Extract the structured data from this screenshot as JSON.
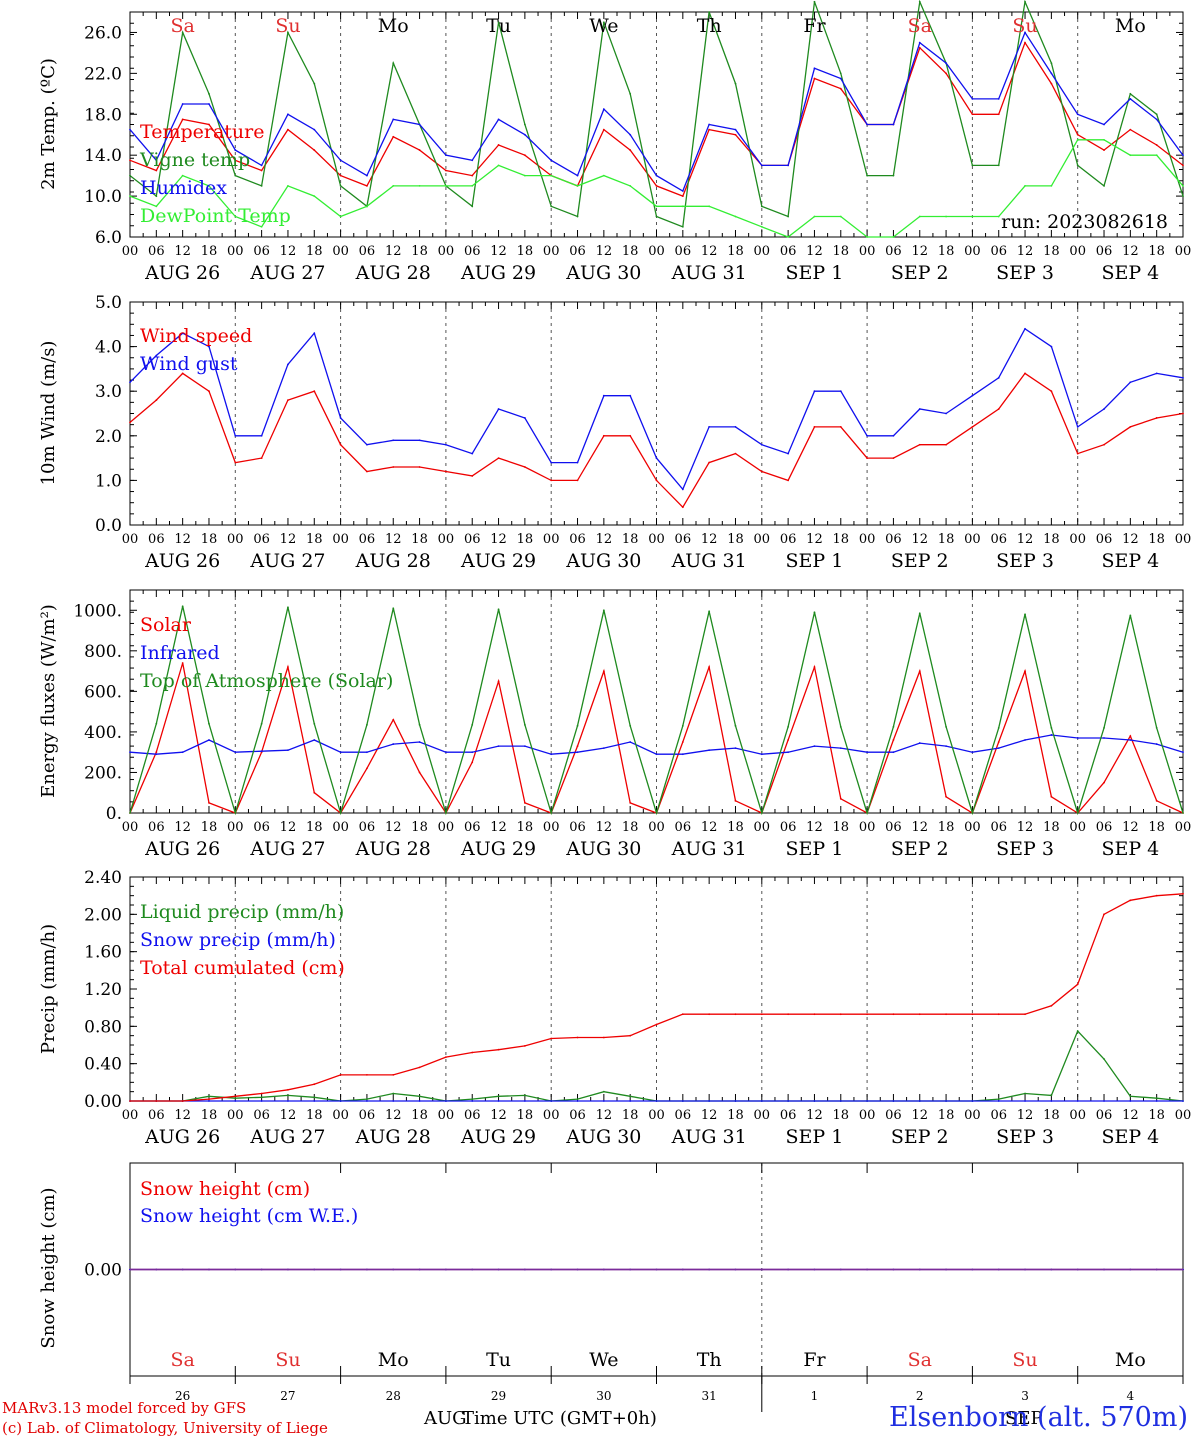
{
  "run_label": "run: 2023082618",
  "footer": {
    "credit_line1": "MARv3.13 model forced by GFS",
    "credit_line2": "(c) Lab. of Climatology, University of Liege",
    "xlabel": "Time UTC (GMT+0h)",
    "station": "Elsenborn (alt. 570m)",
    "month_start": "AUG",
    "month_end": "SEP"
  },
  "colors": {
    "red": "#ee0000",
    "green": "#1f8a1f",
    "blue": "#1010ee",
    "lightgreen": "#33ee33",
    "purple": "#7a2b9a",
    "weekend": "#e03030",
    "weekday": "#000000"
  },
  "days": {
    "weekdays": [
      "Sa",
      "Su",
      "Mo",
      "Tu",
      "We",
      "Th",
      "Fr",
      "Sa",
      "Su",
      "Mo"
    ],
    "weekend": [
      true,
      true,
      false,
      false,
      false,
      false,
      false,
      true,
      true,
      false
    ],
    "dates": [
      "AUG 26",
      "AUG 27",
      "AUG 28",
      "AUG 29",
      "AUG 30",
      "AUG 31",
      "SEP  1",
      "SEP  2",
      "SEP  3",
      "SEP  4"
    ],
    "day_numbers": [
      "26",
      "27",
      "28",
      "29",
      "30",
      "31",
      "1",
      "2",
      "3",
      "4"
    ],
    "hour_ticks": [
      "00",
      "06",
      "12",
      "18"
    ]
  },
  "chart_data": [
    {
      "type": "line",
      "ylabel": "2m Temp. (ºC)",
      "ylim": [
        6,
        28
      ],
      "yticks": [
        "6.0",
        "10.0",
        "14.0",
        "18.0",
        "22.0",
        "26.0"
      ],
      "x": "hours since AUG 26 00 UTC, every 6 h",
      "series": [
        {
          "name": "Temperature",
          "color": "red",
          "values": [
            13.5,
            12.5,
            17.5,
            17,
            13.5,
            12.5,
            16.5,
            14.5,
            12,
            11,
            15.8,
            14.5,
            12.5,
            12,
            15,
            14,
            12,
            11,
            16.5,
            14.5,
            11,
            10,
            16.5,
            16,
            13,
            13,
            21.5,
            20.5,
            17,
            17,
            24.5,
            22,
            18,
            18,
            25,
            21,
            16,
            14.5,
            16.5,
            15,
            13
          ]
        },
        {
          "name": "Vigne temp",
          "color": "green",
          "values": [
            12,
            10,
            26,
            20,
            12,
            11,
            26,
            21,
            11,
            9,
            23,
            17,
            11,
            9,
            27,
            17,
            9,
            8,
            27,
            20,
            8,
            7,
            28,
            21,
            9,
            8,
            29,
            22,
            12,
            12,
            29,
            23,
            13,
            13,
            29,
            23,
            13,
            11,
            20,
            18,
            10
          ]
        },
        {
          "name": "Humidex",
          "color": "blue",
          "values": [
            16.5,
            13.5,
            19,
            19,
            14.5,
            13,
            18,
            16.5,
            13.5,
            12,
            17.5,
            17,
            14,
            13.5,
            17.5,
            16,
            13.5,
            12,
            18.5,
            16,
            12,
            10.5,
            17,
            16.5,
            13,
            13,
            22.5,
            21.5,
            17,
            17,
            25,
            23,
            19.5,
            19.5,
            26,
            22,
            18,
            17,
            19.5,
            17.5,
            14
          ]
        },
        {
          "name": "DewPoint Temp",
          "color": "lightgreen",
          "values": [
            10,
            9,
            12,
            11,
            8,
            7,
            11,
            10,
            8,
            9,
            11,
            11,
            11,
            11,
            13,
            12,
            12,
            11,
            12,
            11,
            9,
            9,
            9,
            8,
            7,
            6,
            8,
            8,
            6,
            6,
            8,
            8,
            8,
            8,
            11,
            11,
            15.5,
            15.5,
            14,
            14,
            11
          ]
        }
      ]
    },
    {
      "type": "line",
      "ylabel": "10m Wind (m/s)",
      "ylim": [
        0,
        5
      ],
      "yticks": [
        "0.0",
        "1.0",
        "2.0",
        "3.0",
        "4.0",
        "5.0"
      ],
      "x": "hours since AUG 26 00 UTC, every 6 h",
      "series": [
        {
          "name": "Wind speed",
          "color": "red",
          "values": [
            2.3,
            2.8,
            3.4,
            3.0,
            1.4,
            1.5,
            2.8,
            3.0,
            1.8,
            1.2,
            1.3,
            1.3,
            1.2,
            1.1,
            1.5,
            1.3,
            1.0,
            1.0,
            2.0,
            2.0,
            1.0,
            0.4,
            1.4,
            1.6,
            1.2,
            1.0,
            2.2,
            2.2,
            1.5,
            1.5,
            1.8,
            1.8,
            2.2,
            2.6,
            3.4,
            3.0,
            1.6,
            1.8,
            2.2,
            2.4,
            2.5
          ]
        },
        {
          "name": "Wind gust",
          "color": "blue",
          "values": [
            3.2,
            3.8,
            4.3,
            4.0,
            2.0,
            2.0,
            3.6,
            4.3,
            2.4,
            1.8,
            1.9,
            1.9,
            1.8,
            1.6,
            2.6,
            2.4,
            1.4,
            1.4,
            2.9,
            2.9,
            1.5,
            0.8,
            2.2,
            2.2,
            1.8,
            1.6,
            3.0,
            3.0,
            2.0,
            2.0,
            2.6,
            2.5,
            2.9,
            3.3,
            4.4,
            4.0,
            2.2,
            2.6,
            3.2,
            3.4,
            3.3
          ]
        }
      ]
    },
    {
      "type": "line",
      "ylabel": "Energy fluxes (W/m²)",
      "ylim": [
        0,
        1100
      ],
      "yticks": [
        "0.",
        "200.",
        "400.",
        "600.",
        "800.",
        "1000."
      ],
      "x": "hours since AUG 26 00 UTC, every 6 h",
      "series": [
        {
          "name": "Solar",
          "color": "red",
          "values": [
            0,
            300,
            740,
            50,
            0,
            300,
            720,
            100,
            0,
            220,
            460,
            200,
            0,
            250,
            650,
            50,
            0,
            330,
            700,
            50,
            0,
            350,
            720,
            60,
            0,
            360,
            720,
            70,
            0,
            360,
            700,
            80,
            0,
            350,
            700,
            80,
            0,
            150,
            380,
            60,
            0
          ]
        },
        {
          "name": "Infrared",
          "color": "blue",
          "values": [
            300,
            290,
            300,
            360,
            300,
            305,
            310,
            360,
            300,
            300,
            340,
            350,
            300,
            300,
            330,
            330,
            290,
            300,
            320,
            350,
            290,
            290,
            310,
            320,
            290,
            300,
            330,
            320,
            300,
            300,
            345,
            330,
            300,
            320,
            360,
            385,
            370,
            370,
            360,
            340,
            300
          ]
        },
        {
          "name": "Top of Atmosphere (Solar)",
          "color": "green",
          "values": [
            0,
            440,
            1020,
            440,
            0,
            440,
            1015,
            440,
            0,
            435,
            1010,
            435,
            0,
            435,
            1005,
            435,
            0,
            430,
            1000,
            430,
            0,
            430,
            995,
            430,
            0,
            425,
            990,
            425,
            0,
            425,
            985,
            425,
            0,
            420,
            980,
            420,
            0,
            420,
            975,
            420,
            0
          ]
        }
      ]
    },
    {
      "type": "line",
      "ylabel": "Precip (mm/h)",
      "ylim": [
        0,
        2.4
      ],
      "yticks": [
        "0.00",
        "0.40",
        "0.80",
        "1.20",
        "1.60",
        "2.00",
        "2.40"
      ],
      "x": "hours since AUG 26 00 UTC, every 6 h",
      "series": [
        {
          "name": "Liquid precip (mm/h)",
          "color": "green",
          "values": [
            0,
            0,
            0,
            0.05,
            0.03,
            0.04,
            0.06,
            0.04,
            0,
            0.02,
            0.08,
            0.05,
            0,
            0.02,
            0.05,
            0.06,
            0,
            0.02,
            0.1,
            0.05,
            0,
            0,
            0,
            0,
            0,
            0,
            0,
            0,
            0,
            0,
            0,
            0,
            0,
            0.02,
            0.08,
            0.06,
            0.75,
            0.45,
            0.05,
            0.03,
            0
          ]
        },
        {
          "name": "Snow precip (mm/h)",
          "color": "blue",
          "values": [
            0,
            0,
            0,
            0,
            0,
            0,
            0,
            0,
            0,
            0,
            0,
            0,
            0,
            0,
            0,
            0,
            0,
            0,
            0,
            0,
            0,
            0,
            0,
            0,
            0,
            0,
            0,
            0,
            0,
            0,
            0,
            0,
            0,
            0,
            0,
            0,
            0,
            0,
            0,
            0,
            0
          ]
        },
        {
          "name": "Total cumulated (cm)",
          "color": "red",
          "values": [
            0,
            0,
            0,
            0.02,
            0.05,
            0.08,
            0.12,
            0.18,
            0.28,
            0.28,
            0.28,
            0.36,
            0.47,
            0.52,
            0.55,
            0.59,
            0.67,
            0.68,
            0.68,
            0.7,
            0.82,
            0.93,
            0.93,
            0.93,
            0.93,
            0.93,
            0.93,
            0.93,
            0.93,
            0.93,
            0.93,
            0.93,
            0.93,
            0.93,
            0.93,
            1.02,
            1.25,
            2.0,
            2.15,
            2.2,
            2.22
          ]
        }
      ]
    },
    {
      "type": "line",
      "ylabel": "Snow height (cm)",
      "ylim": [
        -1,
        1
      ],
      "yticks": [
        "0.00"
      ],
      "x": "hours since AUG 26 00 UTC, every 6 h",
      "series": [
        {
          "name": "Snow height (cm)",
          "color": "red",
          "values": [
            0,
            0,
            0,
            0,
            0,
            0,
            0,
            0,
            0,
            0,
            0,
            0,
            0,
            0,
            0,
            0,
            0,
            0,
            0,
            0,
            0,
            0,
            0,
            0,
            0,
            0,
            0,
            0,
            0,
            0,
            0,
            0,
            0,
            0,
            0,
            0,
            0,
            0,
            0,
            0,
            0
          ]
        },
        {
          "name": "Snow height (cm W.E.)",
          "color": "blue",
          "values": [
            0,
            0,
            0,
            0,
            0,
            0,
            0,
            0,
            0,
            0,
            0,
            0,
            0,
            0,
            0,
            0,
            0,
            0,
            0,
            0,
            0,
            0,
            0,
            0,
            0,
            0,
            0,
            0,
            0,
            0,
            0,
            0,
            0,
            0,
            0,
            0,
            0,
            0,
            0,
            0,
            0
          ]
        }
      ]
    }
  ]
}
